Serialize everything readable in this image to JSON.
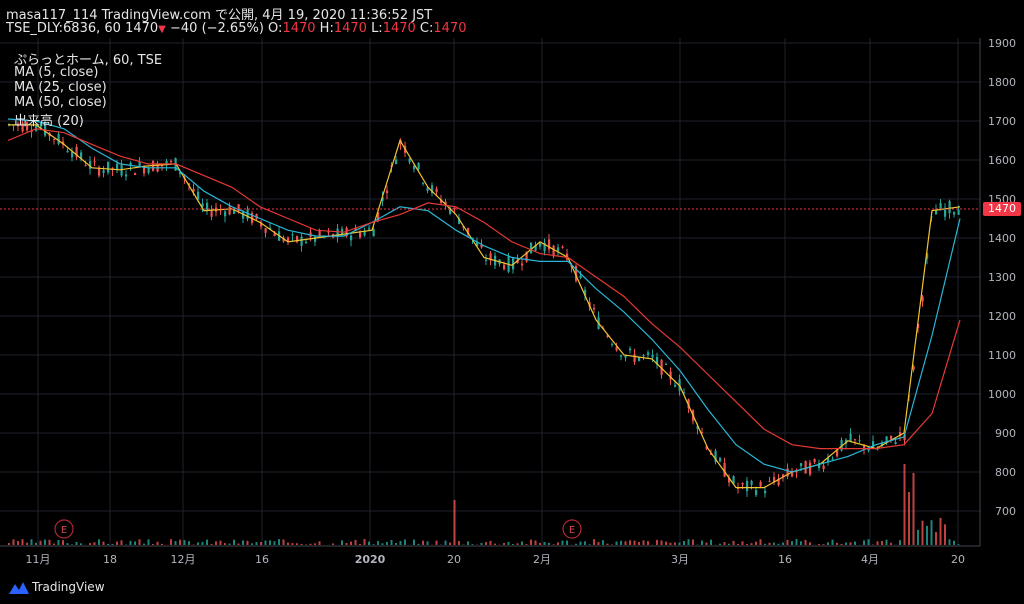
{
  "header": {
    "line1": "masa117_114 TradingView.com で公開, 4月 19, 2020 11:36:52 JST",
    "symbol": "TSE_DLY:6836, 60",
    "last": "1470",
    "change": "−40 (−2.65%)",
    "o_label": "O:",
    "o_value": "1470",
    "h_label": "H:",
    "h_value": "1470",
    "l_label": "L:",
    "l_value": "1470",
    "c_label": "C:",
    "c_value": "1470"
  },
  "legend": {
    "series": "ぷらっとホーム, 60, TSE",
    "ma5": "MA (5, close)",
    "ma25": "MA (25, close)",
    "ma50": "MA (50, close)",
    "volume": "出来高 (20)"
  },
  "price_tag": "1470",
  "footer": {
    "brand": "TradingView"
  },
  "colors": {
    "up": "#26a69a",
    "down": "#ef5350",
    "ma5": "#f0c431",
    "ma25": "#29b6d6",
    "ma50": "#e53935",
    "grid": "#1e222d",
    "axis_text": "#b2b5be"
  },
  "chart_data": {
    "type": "line",
    "title": "ぷらっとホーム, 60, TSE",
    "ylim": [
      650,
      1900
    ],
    "y_ticks": [
      "700",
      "800",
      "900",
      "1000",
      "1100",
      "1200",
      "1300",
      "1400",
      "1500",
      "1600",
      "1700",
      "1800",
      "1900"
    ],
    "x_ticks": [
      "11月",
      "18",
      "12月",
      "16",
      "2020",
      "20",
      "2月",
      "3月",
      "16",
      "4月",
      "20"
    ],
    "event_markers": [
      "E",
      "E"
    ],
    "series": [
      {
        "name": "MA (5, close)",
        "values": [
          1690,
          1690,
          1640,
          1580,
          1575,
          1585,
          1590,
          1470,
          1475,
          1440,
          1390,
          1400,
          1410,
          1420,
          1650,
          1530,
          1460,
          1350,
          1330,
          1390,
          1350,
          1190,
          1100,
          1090,
          1020,
          860,
          760,
          760,
          800,
          820,
          880,
          860,
          900,
          1470,
          1480
        ]
      },
      {
        "name": "MA (25, close)",
        "values": [
          1705,
          1700,
          1680,
          1630,
          1590,
          1580,
          1580,
          1520,
          1480,
          1450,
          1420,
          1405,
          1405,
          1440,
          1480,
          1470,
          1420,
          1380,
          1350,
          1340,
          1340,
          1270,
          1210,
          1140,
          1060,
          960,
          870,
          820,
          800,
          820,
          840,
          870,
          890,
          1150,
          1450
        ]
      },
      {
        "name": "MA (50, close)",
        "values": [
          1650,
          1680,
          1670,
          1640,
          1610,
          1590,
          1590,
          1560,
          1530,
          1480,
          1450,
          1420,
          1415,
          1440,
          1460,
          1490,
          1480,
          1440,
          1390,
          1360,
          1350,
          1300,
          1250,
          1180,
          1120,
          1050,
          980,
          910,
          870,
          860,
          860,
          860,
          870,
          950,
          1190
        ]
      }
    ],
    "xlabel": "",
    "ylabel": "",
    "grid": true
  }
}
